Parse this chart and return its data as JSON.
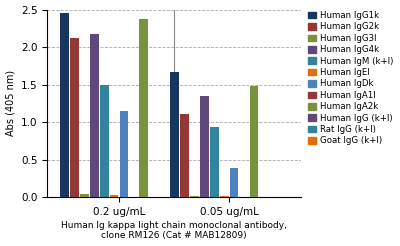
{
  "xlabel": "Human Ig kappa light chain monoclonal antibody,\nclone RM126 (Cat # MAB12809)",
  "ylabel": "Abs (405 nm)",
  "groups": [
    "0.2 ug/mL",
    "0.05 ug/mL"
  ],
  "series": [
    {
      "label": "Human IgG1k",
      "color": "#17375e",
      "values": [
        2.45,
        1.67
      ]
    },
    {
      "label": "Human IgG2k",
      "color": "#953735",
      "values": [
        2.12,
        1.11
      ]
    },
    {
      "label": "Human IgG3l",
      "color": "#77933c",
      "values": [
        0.04,
        0.01
      ]
    },
    {
      "label": "Human IgG4k",
      "color": "#5f497a",
      "values": [
        2.17,
        1.35
      ]
    },
    {
      "label": "Human IgM (k+l)",
      "color": "#31849b",
      "values": [
        1.49,
        0.93
      ]
    },
    {
      "label": "Human IgEl",
      "color": "#e26b0a",
      "values": [
        0.03,
        0.02
      ]
    },
    {
      "label": "Human IgDk",
      "color": "#4f81bd",
      "values": [
        1.15,
        0.39
      ]
    },
    {
      "label": "Human IgA1l",
      "color": "#953735",
      "values": [
        0.0,
        0.0
      ]
    },
    {
      "label": "Human IgA2k",
      "color": "#77933c",
      "values": [
        2.37,
        1.48
      ]
    },
    {
      "label": "Human IgG (k+l)",
      "color": "#5f497a",
      "values": [
        0.0,
        0.0
      ]
    },
    {
      "label": "Rat IgG (k+l)",
      "color": "#31849b",
      "values": [
        0.0,
        0.0
      ]
    },
    {
      "label": "Goat IgG (k+l)",
      "color": "#e26b0a",
      "values": [
        0.0,
        0.0
      ]
    }
  ],
  "ylim": [
    0,
    2.5
  ],
  "yticks": [
    0,
    0.5,
    1.0,
    1.5,
    2.0,
    2.5
  ],
  "background_color": "#ffffff",
  "grid_color": "#aaaaaa",
  "legend_fontsize": 6.2,
  "axis_fontsize": 7,
  "tick_fontsize": 7.5
}
